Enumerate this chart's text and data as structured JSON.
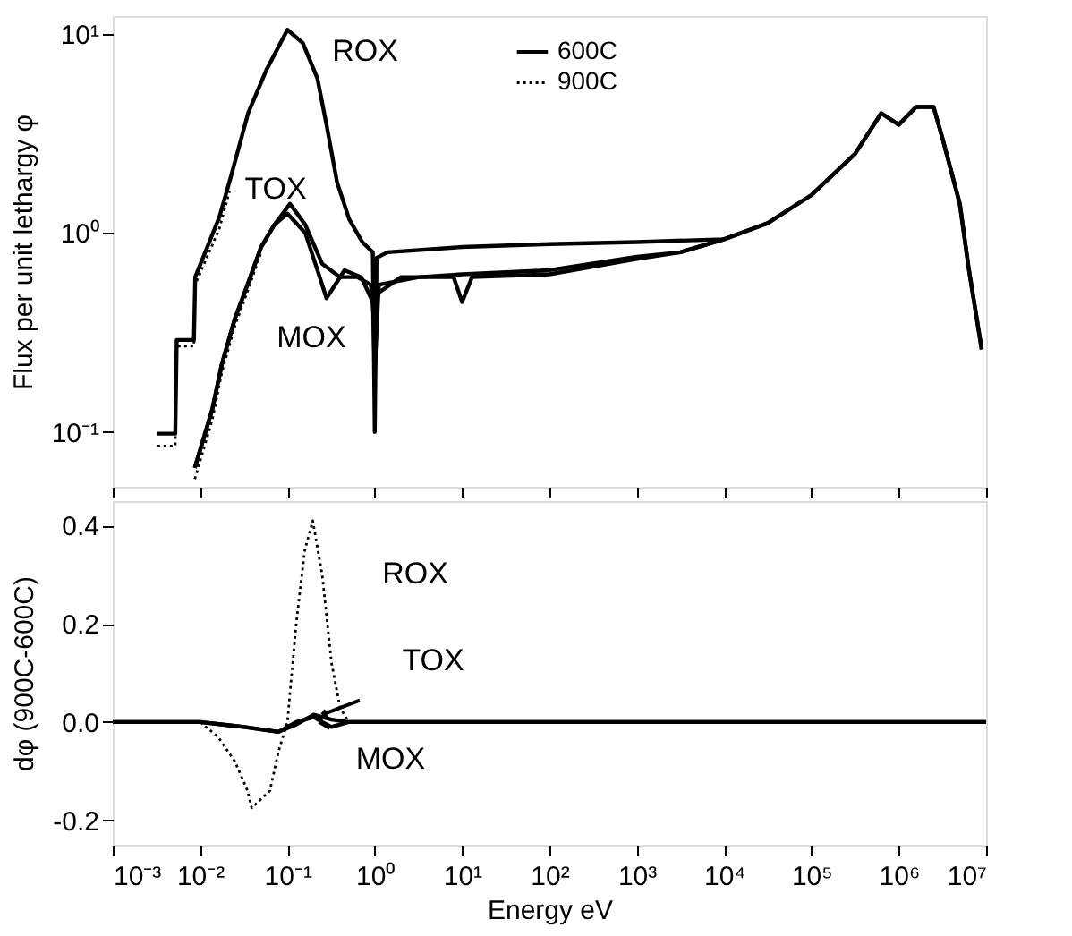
{
  "chart_data": [
    {
      "type": "line",
      "ylabel": "Flux per unit lethargy  φ",
      "log": "xy",
      "tick_labels": "y",
      "legend": "top",
      "grid": false,
      "xlim": [
        0.001,
        10000000
      ],
      "ylim": [
        0.053,
        12.3
      ],
      "xticks": [
        {
          "value": 0.001,
          "label": null
        },
        {
          "value": 0.01,
          "label": null
        },
        {
          "value": 0.1,
          "label": null
        },
        {
          "value": 1,
          "label": null
        },
        {
          "value": 10,
          "label": null
        },
        {
          "value": 100,
          "label": null
        },
        {
          "value": 1000,
          "label": null
        },
        {
          "value": 10000,
          "label": null
        },
        {
          "value": 100000,
          "label": null
        },
        {
          "value": 1000000,
          "label": null
        },
        {
          "value": 10000000,
          "label": null
        }
      ],
      "yticks": [
        {
          "value": 0.1,
          "label": "10⁻¹"
        },
        {
          "value": 1,
          "label": "10⁰"
        },
        {
          "value": 10,
          "label": "10¹"
        }
      ],
      "annotations": [
        "ROX",
        "TOX",
        "MOX"
      ],
      "series": [
        {
          "name": "600C",
          "color": "#000000",
          "line_style": "solid",
          "x": [
            0.00324,
            0.0052,
            0.0054,
            0.0085,
            0.0088,
            0.0166,
            0.0224,
            0.0355,
            0.0575,
            0.1,
            0.15,
            0.22,
            0.28,
            0.37,
            0.51,
            0.72,
            0.95,
            1.0,
            1.05,
            1.4,
            10,
            100,
            1000,
            10000,
            31600,
            100000,
            316000,
            630000,
            1000000,
            1580000,
            2500000,
            3160000,
            5000000,
            6300000,
            8900000
          ],
          "values": [
            0.098,
            0.098,
            0.29,
            0.29,
            0.6,
            1.2,
            1.9,
            4.0,
            6.6,
            10.5,
            9.0,
            6.0,
            3.5,
            1.8,
            1.17,
            0.9,
            0.8,
            0.1,
            0.75,
            0.8,
            0.85,
            0.88,
            0.9,
            0.93,
            1.12,
            1.55,
            2.5,
            4.0,
            3.5,
            4.3,
            4.3,
            3.0,
            1.4,
            0.67,
            0.26
          ]
        },
        {
          "name": "900C",
          "color": "#000000",
          "line_style": "dotted",
          "x": [
            0.00324,
            0.0052,
            0.0054,
            0.0085,
            0.0088,
            0.0166,
            0.0224
          ],
          "values": [
            0.085,
            0.085,
            0.27,
            0.27,
            0.55,
            1.05,
            1.7
          ]
        },
        {
          "color": "#000000",
          "line_style": "solid",
          "x": [
            0.0087,
            0.0138,
            0.0178,
            0.025,
            0.035,
            0.05,
            0.071,
            0.107,
            0.16,
            0.25,
            0.4,
            0.63,
            0.9,
            1.0,
            1.12,
            3.2,
            10,
            100,
            1000,
            3162,
            10000,
            31600,
            100000,
            316000,
            630000,
            1000000,
            1580000,
            2500000,
            3160000,
            5000000,
            6300000,
            8900000
          ],
          "values": [
            0.066,
            0.13,
            0.22,
            0.37,
            0.55,
            0.85,
            1.1,
            1.4,
            1.1,
            0.7,
            0.6,
            0.6,
            0.55,
            0.35,
            0.55,
            0.6,
            0.62,
            0.65,
            0.76,
            0.8,
            0.93,
            1.12,
            1.55,
            2.5,
            4.0,
            3.5,
            4.3,
            4.3,
            3.0,
            1.4,
            0.67,
            0.26
          ]
        },
        {
          "color": "#000000",
          "line_style": "dotted",
          "x": [
            0.0087,
            0.0138,
            0.0178,
            0.025,
            0.035,
            0.05
          ],
          "values": [
            0.058,
            0.115,
            0.2,
            0.34,
            0.51,
            0.8
          ]
        },
        {
          "color": "#000000",
          "line_style": "solid",
          "x": [
            0.0087,
            0.0138,
            0.0178,
            0.025,
            0.035,
            0.05,
            0.071,
            0.1,
            0.16,
            0.25,
            0.28,
            0.45,
            0.7,
            0.95,
            1.0,
            1.1,
            2,
            8,
            10,
            13,
            100,
            1000,
            3162,
            10000
          ],
          "values": [
            0.066,
            0.13,
            0.22,
            0.37,
            0.55,
            0.85,
            1.1,
            1.25,
            1.0,
            0.55,
            0.47,
            0.65,
            0.6,
            0.45,
            0.2,
            0.5,
            0.6,
            0.6,
            0.45,
            0.6,
            0.62,
            0.74,
            0.8,
            0.93
          ]
        }
      ]
    },
    {
      "type": "line",
      "xlabel": "Energy eV",
      "ylabel": "dφ (900C-600C)",
      "log": "x",
      "grid": false,
      "xlim": [
        0.001,
        10000000
      ],
      "ylim": [
        -0.25,
        0.45
      ],
      "xticks": [
        {
          "value": 0.001,
          "label": "10⁻³"
        },
        {
          "value": 0.01,
          "label": "10⁻²"
        },
        {
          "value": 0.1,
          "label": "10⁻¹"
        },
        {
          "value": 1,
          "label": "10⁰"
        },
        {
          "value": 10,
          "label": "10¹"
        },
        {
          "value": 100,
          "label": "10²"
        },
        {
          "value": 1000,
          "label": "10³"
        },
        {
          "value": 10000,
          "label": "10⁴"
        },
        {
          "value": 100000,
          "label": "10⁵"
        },
        {
          "value": 1000000,
          "label": "10⁶"
        },
        {
          "value": 10000000,
          "label": "10⁷"
        }
      ],
      "yticks": [
        {
          "value": -0.2,
          "label": "-0.2"
        },
        {
          "value": 0,
          "label": "0.0"
        },
        {
          "value": 0.2,
          "label": "0.2"
        },
        {
          "value": 0.4,
          "label": "0.4"
        }
      ],
      "annotations": [
        "ROX",
        {
          "text": "TOX",
          "x": 0.25,
          "y": 0.015
        },
        {
          "text": "MOX",
          "x": 0.23,
          "y": 0.0
        }
      ],
      "series": [
        {
          "color": "#000000",
          "line_style": "dotted",
          "x": [
            0.001,
            0.01,
            0.016,
            0.025,
            0.035,
            0.039,
            0.063,
            0.079,
            0.1,
            0.126,
            0.158,
            0.195,
            0.25,
            0.32,
            0.4,
            0.5,
            10000000
          ],
          "values": [
            0,
            0,
            -0.03,
            -0.08,
            -0.14,
            -0.175,
            -0.14,
            -0.06,
            0,
            0.2,
            0.35,
            0.41,
            0.3,
            0.12,
            0.03,
            0,
            0
          ]
        },
        {
          "color": "#000000",
          "line_style": "solid",
          "x": [
            0.001,
            0.01,
            0.032,
            0.079,
            0.126,
            0.2,
            0.32,
            0.5,
            10000000
          ],
          "values": [
            0,
            0,
            -0.01,
            -0.02,
            -0.005,
            0.015,
            0.005,
            0,
            0
          ]
        },
        {
          "color": "#000000",
          "line_style": "solid",
          "x": [
            0.001,
            0.01,
            0.032,
            0.079,
            0.126,
            0.2,
            0.25,
            0.32,
            0.5,
            10000000
          ],
          "values": [
            0,
            0,
            -0.01,
            -0.02,
            0,
            0.01,
            0,
            -0.01,
            0,
            0
          ]
        }
      ]
    }
  ]
}
